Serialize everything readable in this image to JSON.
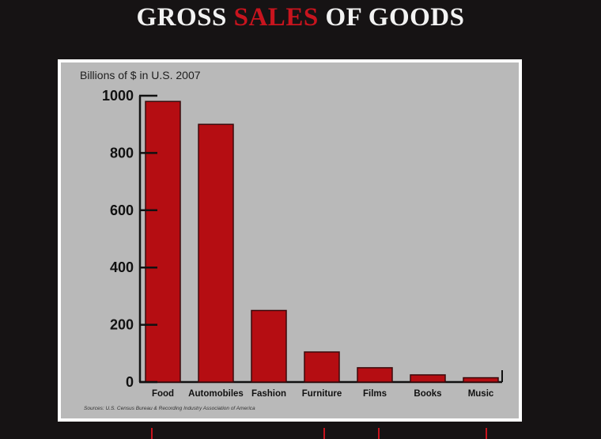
{
  "title": {
    "part1": "GROSS ",
    "accent": "SALES",
    "part2": " OF GOODS"
  },
  "colors": {
    "background": "#161314",
    "panel": "#b9b9b9",
    "bar": "#b50d12",
    "accent": "#c8141e"
  },
  "chart_data": {
    "type": "bar",
    "ylabel": "Billions of $ in U.S. 2007",
    "xlabel": "",
    "categories": [
      "Food",
      "Automobiles",
      "Fashion",
      "Furniture",
      "Films",
      "Books",
      "Music"
    ],
    "values": [
      980,
      900,
      250,
      105,
      50,
      25,
      15
    ],
    "ylim": [
      0,
      1000
    ],
    "yticks": [
      0,
      200,
      400,
      600,
      800,
      1000
    ],
    "grid": false,
    "legend": "none",
    "source": "Sources: U.S. Census Bureau & Recording Industry Association of America"
  }
}
